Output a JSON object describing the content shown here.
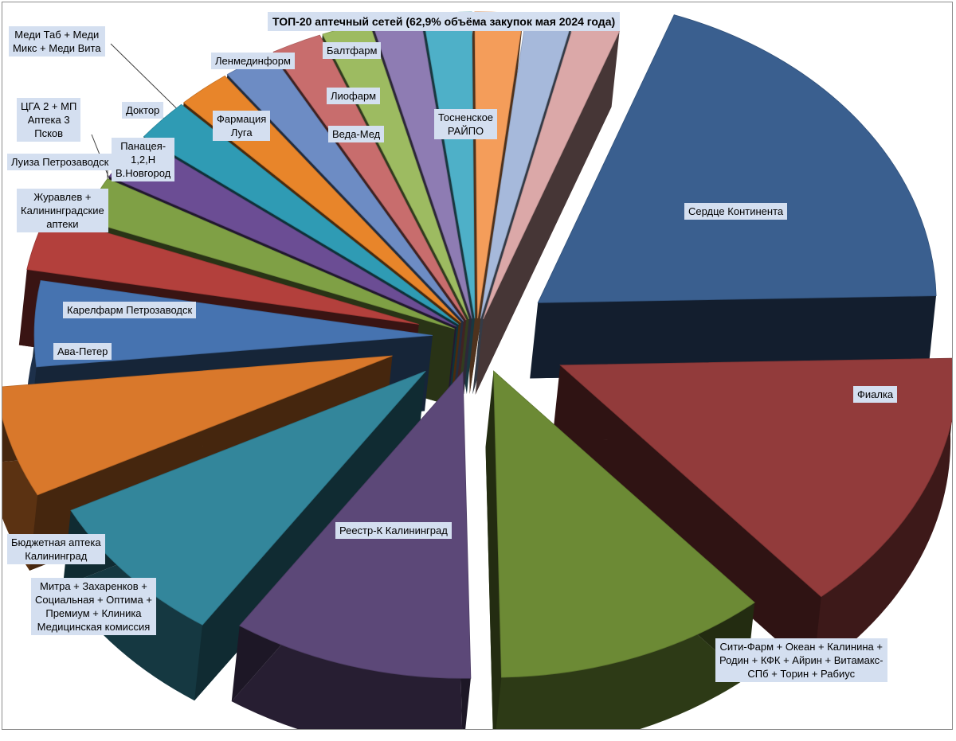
{
  "chart_data": {
    "type": "pie",
    "style": "3d-exploded",
    "title": "ТОП-20 аптечный сетей (62,9% объёма закупок мая 2024 года)",
    "legend": "none",
    "slices": [
      {
        "name": "Сердце Континента",
        "value": 19.5,
        "color": "#3a5f8f"
      },
      {
        "name": "Фиалка",
        "value": 14.3,
        "color": "#923b3b"
      },
      {
        "name": "Сити-Фарм + Океан + Калинина +\nРодин + КФК + Айрин + Витамакс-\nСПб + Торин + Рабиус",
        "value": 11.3,
        "color": "#6c8a35"
      },
      {
        "name": "Реестр-К Калининград",
        "value": 10.0,
        "color": "#5c4878"
      },
      {
        "name": "Митра + Захаренков +\nСоциальная + Оптима +\nПремиум + Клиника\nМедицинская комиссия",
        "value": 8.2,
        "color": "#33869b"
      },
      {
        "name": "Бюджетная аптека\nКалининград",
        "value": 6.0,
        "color": "#d9782b"
      },
      {
        "name": "Ава-Петер",
        "value": 4.6,
        "color": "#4673b0"
      },
      {
        "name": "Карелфарм Петрозаводск",
        "value": 3.0,
        "color": "#b3403c"
      },
      {
        "name": "Журавлев +\nКалининградские\nаптеки",
        "value": 2.4,
        "color": "#7fa045"
      },
      {
        "name": "Луиза Петрозаводск",
        "value": 2.4,
        "color": "#6b4d94"
      },
      {
        "name": "ЦГА 2 + МП\nАптека 3\nПсков",
        "value": 2.3,
        "color": "#2f9bb4"
      },
      {
        "name": "Панацея-\n1,2,Н\nВ.Новгород",
        "value": 2.2,
        "color": "#e8852a"
      },
      {
        "name": "Доктор",
        "value": 2.1,
        "color": "#6d8cc4"
      },
      {
        "name": "Меди Таб + Меди\nМикс + Меди Вита",
        "value": 2.1,
        "color": "#c86d6d"
      },
      {
        "name": "Фармация\nЛуга",
        "value": 2.0,
        "color": "#9dbb61"
      },
      {
        "name": "Ленмединформ",
        "value": 2.0,
        "color": "#8e7cb3"
      },
      {
        "name": "Веда-Мед",
        "value": 2.0,
        "color": "#4eb0c8"
      },
      {
        "name": "Лиофарм",
        "value": 2.0,
        "color": "#f49d5a"
      },
      {
        "name": "Балтфарм",
        "value": 1.9,
        "color": "#a6b9db"
      },
      {
        "name": "Тосненское\nРАЙПО",
        "value": 1.9,
        "color": "#dba8a8"
      }
    ]
  }
}
